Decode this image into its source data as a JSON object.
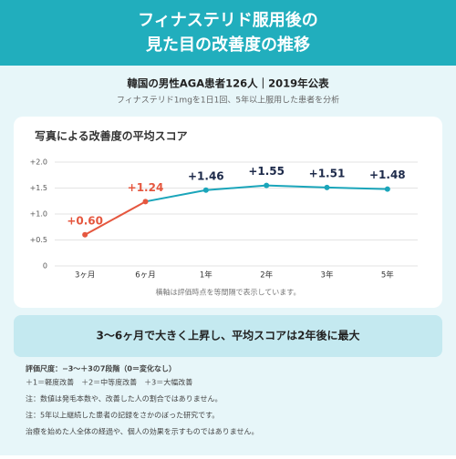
{
  "header": {
    "title_lines": [
      "フィナステリド服用後の",
      "見た目の改善度の推移"
    ]
  },
  "study": {
    "title": "韓国の男性AGA患者126人｜2019年公表",
    "subtitle": "フィナステリド1mgを1日1回、5年以上服用した患者を分析"
  },
  "chart_data": {
    "type": "line",
    "title": "写真による改善度の平均スコア",
    "categories": [
      "3ヶ月",
      "6ヶ月",
      "1年",
      "2年",
      "3年",
      "5年"
    ],
    "values": [
      0.6,
      1.24,
      1.46,
      1.55,
      1.51,
      1.48
    ],
    "value_labels": [
      "+0.60",
      "+1.24",
      "+1.46",
      "+1.55",
      "+1.51",
      "+1.48"
    ],
    "point_colors": [
      "#e5573f",
      "#e5573f",
      "#1aa5ba",
      "#1aa5ba",
      "#1aa5ba",
      "#1aa5ba"
    ],
    "ylim": [
      0,
      2.0
    ],
    "yticks": [
      0,
      {
        "value": 0.5,
        "label": "+0.5"
      },
      {
        "value": 1.0,
        "label": "+1.0"
      },
      {
        "value": 1.5,
        "label": "+1.5"
      },
      {
        "value": 2.0,
        "label": "+2.0"
      }
    ],
    "grid": true,
    "axis_note": "横軸は評価時点を等間隔で表示しています。"
  },
  "summary": "3〜6ヶ月で大きく上昇し、平均スコアは2年後に最大",
  "notes": [
    "評価尺度：−3〜＋3の7段階（0＝変化なし）",
    "＋1＝軽度改善　＋2＝中等度改善　＋3＝大幅改善",
    "注：数値は発毛本数や、改善した人の割合ではありません。",
    "注：5年以上継続した患者の記録をさかのぼった研究です。",
    "治療を始めた人全体の経過や、個人の効果を示すものではありません。"
  ]
}
